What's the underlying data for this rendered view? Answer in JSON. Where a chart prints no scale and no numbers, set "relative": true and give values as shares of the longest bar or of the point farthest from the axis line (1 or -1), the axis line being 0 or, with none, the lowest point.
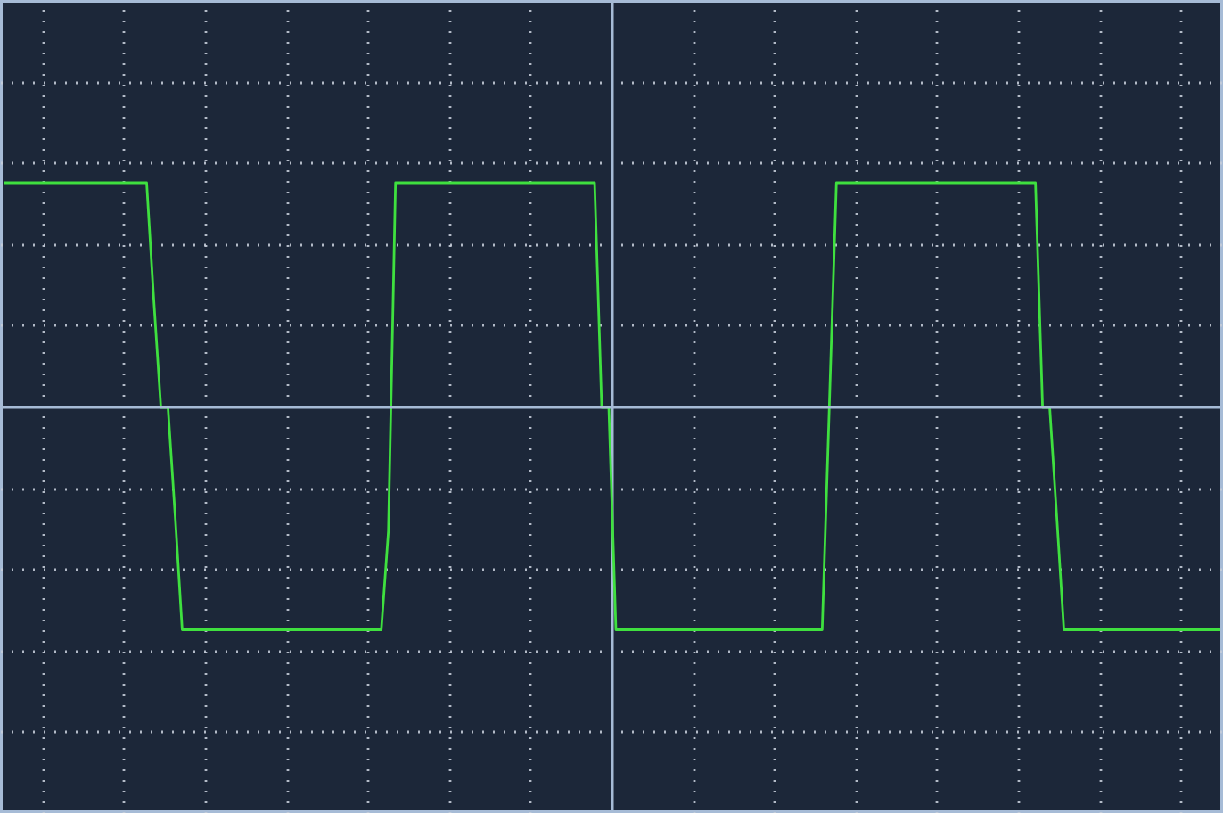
{
  "chart_data": {
    "type": "line",
    "relative": true,
    "grid": true,
    "ref_lines": [
      {
        "axis": "y",
        "value": 0,
        "color": "#a6bbd6",
        "line_style": "solid"
      }
    ],
    "categories": [
      null,
      null,
      null,
      null,
      null,
      null,
      null,
      null,
      null,
      null,
      null,
      null,
      null,
      null,
      null,
      null,
      null,
      null,
      null,
      null,
      null,
      null,
      null,
      null,
      null,
      null,
      null,
      null,
      null,
      null,
      null,
      null,
      null,
      null,
      null,
      null,
      null,
      null,
      null,
      null,
      null,
      null,
      null,
      null,
      null,
      null,
      null,
      null,
      null,
      null,
      null,
      null,
      null,
      null,
      null,
      null,
      null,
      null,
      null,
      null,
      null,
      null,
      null,
      null,
      null,
      null,
      null,
      null,
      null,
      null,
      null,
      null,
      null,
      null,
      null,
      null,
      null,
      null,
      null,
      null,
      null,
      null,
      null,
      null,
      null,
      null,
      null,
      null,
      null,
      null,
      null,
      null,
      null,
      null,
      null,
      null,
      null,
      null,
      null,
      null,
      null,
      null,
      null,
      null,
      null,
      null,
      null,
      null,
      null,
      null,
      null,
      null,
      null,
      null,
      null,
      null,
      null,
      null,
      null,
      null,
      null,
      null,
      null,
      null,
      null,
      null,
      null,
      null,
      null,
      null,
      null,
      null,
      null,
      null,
      null,
      null,
      null,
      null,
      null,
      null,
      null,
      null,
      null,
      null,
      null,
      null,
      null,
      null,
      null,
      null,
      null,
      null,
      null,
      null,
      null,
      null,
      null,
      null,
      null,
      null,
      null,
      null,
      null,
      null,
      null,
      null,
      null,
      null,
      null,
      null,
      null,
      null
    ],
    "series": [
      {
        "color": "#3fe03f",
        "values": [
          1,
          1,
          1,
          1,
          1,
          1,
          1,
          1,
          1,
          1,
          1,
          1,
          1,
          1,
          1,
          1,
          1,
          1,
          1,
          1,
          1,
          0.48,
          0,
          0,
          -0.48,
          -0.99,
          -0.99,
          -0.99,
          -0.99,
          -0.99,
          -0.99,
          -0.99,
          -0.99,
          -0.99,
          -0.99,
          -0.99,
          -0.99,
          -0.99,
          -0.99,
          -0.99,
          -0.99,
          -0.99,
          -0.99,
          -0.99,
          -0.99,
          -0.99,
          -0.99,
          -0.99,
          -0.99,
          -0.99,
          -0.99,
          -0.99,
          -0.99,
          -0.99,
          -0.55,
          1,
          1,
          1,
          1,
          1,
          1,
          1,
          1,
          1,
          1,
          1,
          1,
          1,
          1,
          1,
          1,
          1,
          1,
          1,
          1,
          1,
          1,
          1,
          1,
          1,
          1,
          1,
          1,
          1,
          0,
          0,
          -0.99,
          -0.99,
          -0.99,
          -0.99,
          -0.99,
          -0.99,
          -0.99,
          -0.99,
          -0.99,
          -0.99,
          -0.99,
          -0.99,
          -0.99,
          -0.99,
          -0.99,
          -0.99,
          -0.99,
          -0.99,
          -0.99,
          -0.99,
          -0.99,
          -0.99,
          -0.99,
          -0.99,
          -0.99,
          -0.99,
          -0.99,
          -0.99,
          -0.99,
          -0.99,
          0,
          1,
          1,
          1,
          1,
          1,
          1,
          1,
          1,
          1,
          1,
          1,
          1,
          1,
          1,
          1,
          1,
          1,
          1,
          1,
          1,
          1,
          1,
          1,
          1,
          1,
          1,
          1,
          1,
          1,
          0,
          0,
          -0.49,
          -0.99,
          -0.99,
          -0.99,
          -0.99,
          -0.99,
          -0.99,
          -0.99,
          -0.99,
          -0.99,
          -0.99,
          -0.99,
          -0.99,
          -0.99,
          -0.99,
          -0.99,
          -0.99,
          -0.99,
          -0.99,
          -0.99,
          -0.99,
          -0.99,
          -0.99,
          -0.99
        ]
      }
    ]
  }
}
